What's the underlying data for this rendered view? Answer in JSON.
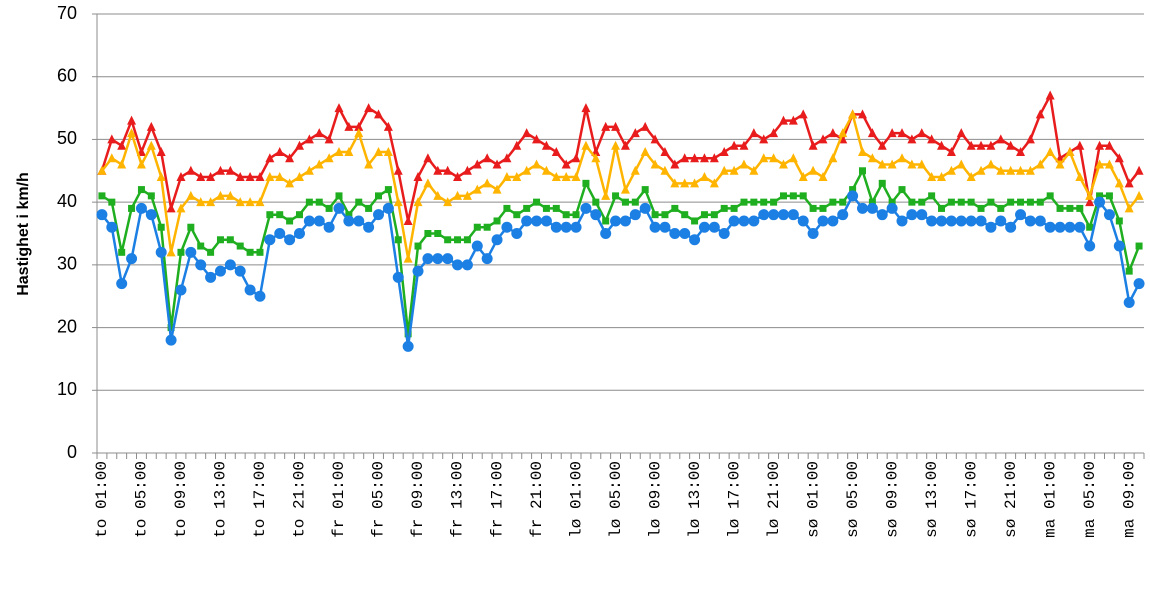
{
  "chart_data": {
    "type": "line",
    "y_label": "Hastighet i km/h",
    "categories": [
      "to 01:00",
      null,
      null,
      null,
      "to 05:00",
      null,
      null,
      null,
      "to 09:00",
      null,
      null,
      null,
      "to 13:00",
      null,
      null,
      null,
      "to 17:00",
      null,
      null,
      null,
      "to 21:00",
      null,
      null,
      null,
      "fr 01:00",
      null,
      null,
      null,
      "fr 05:00",
      null,
      null,
      null,
      "fr 09:00",
      null,
      null,
      null,
      "fr 13:00",
      null,
      null,
      null,
      "fr 17:00",
      null,
      null,
      null,
      "fr 21:00",
      null,
      null,
      null,
      "lø 01:00",
      null,
      null,
      null,
      "lø 05:00",
      null,
      null,
      null,
      "lø 09:00",
      null,
      null,
      null,
      "lø 13:00",
      null,
      null,
      null,
      "lø 17:00",
      null,
      null,
      null,
      "lø 21:00",
      null,
      null,
      null,
      "sø 01:00",
      null,
      null,
      null,
      "sø 05:00",
      null,
      null,
      null,
      "sø 09:00",
      null,
      null,
      null,
      "sø 13:00",
      null,
      null,
      null,
      "sø 17:00",
      null,
      null,
      null,
      "sø 21:00",
      null,
      null,
      null,
      "ma 01:00",
      null,
      null,
      null,
      "ma 05:00",
      null,
      null,
      null,
      "ma 09:00",
      null
    ],
    "series": [
      {
        "color": "#e81c1c",
        "marker": "triangle",
        "values": [
          45,
          50,
          49,
          53,
          48,
          52,
          48,
          39,
          44,
          45,
          44,
          44,
          45,
          45,
          44,
          44,
          44,
          47,
          48,
          47,
          49,
          50,
          51,
          50,
          55,
          52,
          52,
          55,
          54,
          52,
          45,
          37,
          44,
          47,
          45,
          45,
          44,
          45,
          46,
          47,
          46,
          47,
          49,
          51,
          50,
          49,
          48,
          46,
          47,
          55,
          48,
          52,
          52,
          49,
          51,
          52,
          50,
          48,
          46,
          47,
          47,
          47,
          47,
          48,
          49,
          49,
          51,
          50,
          51,
          53,
          53,
          54,
          49,
          50,
          51,
          50,
          54,
          54,
          51,
          49,
          51,
          51,
          50,
          51,
          50,
          49,
          48,
          51,
          49,
          49,
          49,
          50,
          49,
          48,
          50,
          54,
          57,
          47,
          48,
          49,
          40,
          49,
          49,
          47,
          43,
          45
        ]
      },
      {
        "color": "#ffb400",
        "marker": "triangle",
        "values": [
          45,
          47,
          46,
          51,
          46,
          49,
          44,
          32,
          39,
          41,
          40,
          40,
          41,
          41,
          40,
          40,
          40,
          44,
          44,
          43,
          44,
          45,
          46,
          47,
          48,
          48,
          51,
          46,
          48,
          48,
          40,
          31,
          40,
          43,
          41,
          40,
          41,
          41,
          42,
          43,
          42,
          44,
          44,
          45,
          46,
          45,
          44,
          44,
          44,
          49,
          47,
          41,
          49,
          42,
          45,
          48,
          46,
          45,
          43,
          43,
          43,
          44,
          43,
          45,
          45,
          46,
          45,
          47,
          47,
          46,
          47,
          44,
          45,
          44,
          47,
          51,
          54,
          48,
          47,
          46,
          46,
          47,
          46,
          46,
          44,
          44,
          45,
          46,
          44,
          45,
          46,
          45,
          45,
          45,
          45,
          46,
          48,
          46,
          48,
          44,
          41,
          46,
          46,
          43,
          39,
          41
        ]
      },
      {
        "color": "#1fae1f",
        "marker": "square",
        "values": [
          41,
          40,
          32,
          39,
          42,
          41,
          36,
          20,
          32,
          36,
          33,
          32,
          34,
          34,
          33,
          32,
          32,
          38,
          38,
          37,
          38,
          40,
          40,
          39,
          41,
          38,
          40,
          39,
          41,
          42,
          34,
          19,
          33,
          35,
          35,
          34,
          34,
          34,
          36,
          36,
          37,
          39,
          38,
          39,
          40,
          39,
          39,
          38,
          38,
          43,
          40,
          37,
          41,
          40,
          40,
          42,
          38,
          38,
          39,
          38,
          37,
          38,
          38,
          39,
          39,
          40,
          40,
          40,
          40,
          41,
          41,
          41,
          39,
          39,
          40,
          40,
          42,
          45,
          40,
          43,
          40,
          42,
          40,
          40,
          41,
          39,
          40,
          40,
          40,
          39,
          40,
          39,
          40,
          40,
          40,
          40,
          41,
          39,
          39,
          39,
          36,
          41,
          41,
          37,
          29,
          33
        ]
      },
      {
        "color": "#1b7fe3",
        "marker": "circle",
        "values": [
          38,
          36,
          27,
          31,
          39,
          38,
          32,
          18,
          26,
          32,
          30,
          28,
          29,
          30,
          29,
          26,
          25,
          34,
          35,
          34,
          35,
          37,
          37,
          36,
          39,
          37,
          37,
          36,
          38,
          39,
          28,
          17,
          29,
          31,
          31,
          31,
          30,
          30,
          33,
          31,
          34,
          36,
          35,
          37,
          37,
          37,
          36,
          36,
          36,
          39,
          38,
          35,
          37,
          37,
          38,
          39,
          36,
          36,
          35,
          35,
          34,
          36,
          36,
          35,
          37,
          37,
          37,
          38,
          38,
          38,
          38,
          37,
          35,
          37,
          37,
          38,
          41,
          39,
          39,
          38,
          39,
          37,
          38,
          38,
          37,
          37,
          37,
          37,
          37,
          37,
          36,
          37,
          36,
          38,
          37,
          37,
          36,
          36,
          36,
          36,
          33,
          40,
          38,
          33,
          24,
          27
        ]
      }
    ],
    "ylim": [
      0,
      70
    ],
    "yticks": [
      0,
      10,
      20,
      30,
      40,
      50,
      60,
      70
    ],
    "grid": true
  }
}
